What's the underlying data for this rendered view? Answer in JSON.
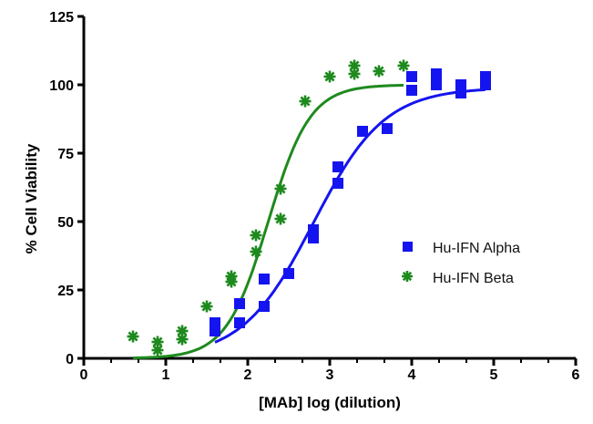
{
  "chart_data": {
    "type": "scatter",
    "title": "",
    "xlabel": "[MAb] log (dilution)",
    "ylabel": "% Cell Viability",
    "xlim": [
      0,
      6
    ],
    "ylim": [
      0,
      125
    ],
    "xticks": [
      0,
      1,
      2,
      3,
      4,
      5,
      6
    ],
    "yticks": [
      0,
      25,
      50,
      75,
      100,
      125
    ],
    "grid": false,
    "legend_position": "center-right",
    "series": [
      {
        "name": "Hu-IFN Alpha",
        "color": "#1414f0",
        "marker": "square",
        "points": [
          [
            1.6,
            13
          ],
          [
            1.6,
            10
          ],
          [
            1.9,
            20
          ],
          [
            1.9,
            13
          ],
          [
            2.2,
            29
          ],
          [
            2.2,
            19
          ],
          [
            2.5,
            31
          ],
          [
            2.8,
            47
          ],
          [
            2.8,
            44
          ],
          [
            3.1,
            70
          ],
          [
            3.1,
            64
          ],
          [
            3.4,
            83
          ],
          [
            3.7,
            84
          ],
          [
            4.0,
            103
          ],
          [
            4.0,
            98
          ],
          [
            4.3,
            104
          ],
          [
            4.3,
            100
          ],
          [
            4.6,
            100
          ],
          [
            4.6,
            97
          ],
          [
            4.9,
            103
          ],
          [
            4.9,
            100
          ]
        ],
        "fit": {
          "model": "4PL",
          "bottom": 0,
          "top": 99,
          "logEC50": 2.8,
          "hill": 1.0,
          "x_range": [
            1.6,
            4.9
          ]
        }
      },
      {
        "name": "Hu-IFN Beta",
        "color": "#1e8a1e",
        "marker": "asterisk",
        "points": [
          [
            0.6,
            8
          ],
          [
            0.9,
            6
          ],
          [
            0.9,
            3
          ],
          [
            1.2,
            10
          ],
          [
            1.2,
            7
          ],
          [
            1.5,
            19
          ],
          [
            1.8,
            30
          ],
          [
            1.8,
            28
          ],
          [
            2.1,
            45
          ],
          [
            2.1,
            39
          ],
          [
            2.4,
            62
          ],
          [
            2.4,
            51
          ],
          [
            2.7,
            94
          ],
          [
            3.0,
            103
          ],
          [
            3.3,
            107
          ],
          [
            3.3,
            104
          ],
          [
            3.6,
            105
          ],
          [
            3.9,
            107
          ]
        ],
        "fit": {
          "model": "4PL",
          "bottom": 0,
          "top": 100,
          "logEC50": 2.25,
          "hill": 1.7,
          "x_range": [
            0.6,
            3.9
          ]
        }
      }
    ]
  }
}
